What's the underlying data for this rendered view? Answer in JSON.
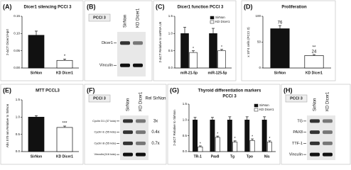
{
  "chart_data": [
    {
      "type": "bar",
      "panel": "(A)",
      "title": "Dicer1 silencing PCCI 3",
      "ylabel": "2-ΔCT Dicer1/Hprt",
      "categories": [
        "SirNon",
        "KD Dicer1"
      ],
      "values": [
        0.095,
        0.022
      ],
      "errors": [
        0.012,
        0.004
      ],
      "colors": [
        "#111111",
        "#ffffff"
      ],
      "significance": "*",
      "ylim": [
        0,
        0.15
      ],
      "yticks": [
        {
          "value": 0,
          "label": "0.00"
        },
        0.05,
        {
          "value": 0.1,
          "label": "0.10"
        },
        0.15
      ]
    },
    {
      "type": "grouped-bar",
      "panel": "(C)",
      "title": "Dicer1 function PCCI 3",
      "ylabel": "2-ΔCT Relative to snRNA U6",
      "categories": [
        "miR-21-5p",
        "miR-125-5p"
      ],
      "series": [
        {
          "name": "SirNon",
          "color": "#111111",
          "values": [
            1.0,
            1.0
          ],
          "errors": [
            0.18,
            0.15
          ]
        },
        {
          "name": "KD Dicer1",
          "color": "#ffffff",
          "values": [
            0.45,
            0.5
          ],
          "errors": [
            0.05,
            0.04
          ],
          "significance": "*"
        }
      ],
      "ylim": [
        0,
        1.5
      ],
      "yticks": [
        {
          "value": 0,
          "label": "0.0"
        },
        0.5,
        {
          "value": 1,
          "label": "1.0"
        },
        1.5
      ],
      "legend": "upper-right"
    },
    {
      "type": "bar",
      "panel": "(D)",
      "title": "Proliferation",
      "ylabel": "x 10^4 cells (PCCI 3)",
      "categories": [
        "SirNon",
        "KD Dicer1"
      ],
      "values": [
        76,
        24
      ],
      "errors": [
        6,
        2
      ],
      "value_labels": [
        "76",
        "24"
      ],
      "colors": [
        "#111111",
        "#ffffff"
      ],
      "significance": "**",
      "ylim": [
        0,
        100
      ],
      "yticks": [
        0,
        50,
        100
      ]
    },
    {
      "type": "bar",
      "panel": "(E)",
      "title": "MTT PCCL3",
      "ylabel": "Abs 570 nm Relative to SirNon",
      "categories": [
        "SirNon",
        "KD Dicer1"
      ],
      "values": [
        1.0,
        0.7
      ],
      "errors": [
        0.04,
        0.04
      ],
      "colors": [
        "#111111",
        "#ffffff"
      ],
      "significance": "***",
      "ylim": [
        0,
        1.5
      ],
      "yticks": [
        {
          "value": 0,
          "label": "0.0"
        },
        0.5,
        {
          "value": 1,
          "label": "1.0"
        },
        1.5
      ]
    },
    {
      "type": "grouped-bar",
      "panel": "(G)",
      "title": "Thyroid differentiation markers",
      "subtitle": "PCCI 3",
      "ylabel": "2-ΔCT Relative to SirNon",
      "categories": [
        "TR-1",
        "Pax8",
        "Tg",
        "Tpo",
        "Nis"
      ],
      "series": [
        {
          "name": "SirNon",
          "color": "#111111",
          "values": [
            1.0,
            1.0,
            1.0,
            1.0,
            1.0
          ],
          "errors": [
            0.08,
            0.08,
            0.1,
            0.1,
            0.1
          ]
        },
        {
          "name": "KD Dicer1",
          "color": "#ffffff",
          "values": [
            0.15,
            0.45,
            0.3,
            0.35,
            0.3
          ],
          "errors": [
            0.03,
            0.04,
            0.04,
            0.05,
            0.04
          ],
          "significance": "*"
        }
      ],
      "ylim": [
        0,
        1.5
      ],
      "yticks": [
        {
          "value": 0,
          "label": "0.0"
        },
        0.5,
        {
          "value": 1,
          "label": "1.0"
        },
        1.5
      ],
      "legend": "upper-right"
    }
  ],
  "blots": [
    {
      "panel": "(B)",
      "title": "PCCI 3",
      "columns": [
        "SirNon",
        "KD Dicer1"
      ],
      "rows": [
        {
          "label": "Dicer1"
        },
        {
          "label": "Vinculin"
        }
      ]
    },
    {
      "panel": "(F)",
      "title": "PCCI 3",
      "columns": [
        "SirNon",
        "KD Dicer1"
      ],
      "ratio_header": "Rel SirNon",
      "rows": [
        {
          "label": "Cyclin D1 (37 kda)",
          "ratio": "3x"
        },
        {
          "label": "Cyclin E (55 kda)",
          "ratio": "0.4x"
        },
        {
          "label": "Cyclin B (55 kda)",
          "ratio": "0.7x"
        },
        {
          "label": "Vinculin(116 kda)"
        }
      ]
    },
    {
      "panel": "(H)",
      "title": "PCCI 3",
      "columns": [
        "SirNon",
        "KD Dicer1"
      ],
      "rows": [
        {
          "label": "TG"
        },
        {
          "label": "PAX8"
        },
        {
          "label": "TTF-1"
        },
        {
          "label": "Vinculin"
        }
      ]
    }
  ]
}
